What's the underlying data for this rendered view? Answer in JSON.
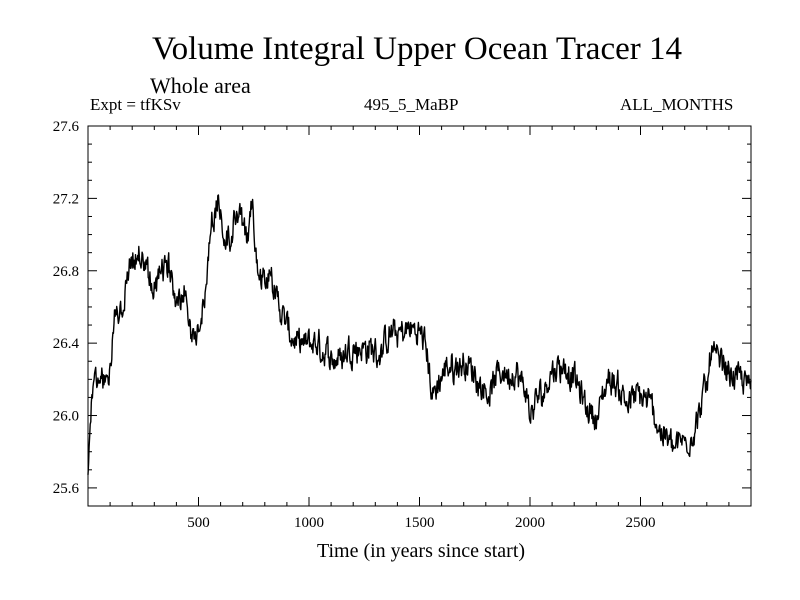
{
  "chart_data": {
    "type": "line",
    "title": "Volume Integral Upper Ocean Tracer 14",
    "subtitle": "Whole area",
    "experiment": "Expt = tfKSv",
    "period": "495_5_MaBP",
    "months": "ALL_MONTHS",
    "xlabel": "Time (in years since start)",
    "ylabel": "",
    "xlim": [
      0,
      3000
    ],
    "ylim": [
      25.5,
      27.6
    ],
    "xticks": [
      500,
      1000,
      1500,
      2000,
      2500
    ],
    "xtick_labels": [
      "500",
      "1000",
      "1500",
      "2000",
      "2500"
    ],
    "yticks": [
      25.6,
      26.0,
      26.4,
      26.8,
      27.2,
      27.6
    ],
    "ytick_labels": [
      "25.6",
      "26.0",
      "26.4",
      "26.8",
      "27.2",
      "27.6"
    ],
    "line_color": "#000000",
    "noise_amplitude": 0.11,
    "series": [
      {
        "name": "Tracer 14",
        "x": [
          0,
          20,
          60,
          100,
          120,
          150,
          180,
          200,
          230,
          260,
          300,
          330,
          360,
          400,
          440,
          470,
          500,
          530,
          560,
          590,
          620,
          650,
          680,
          700,
          720,
          740,
          760,
          790,
          820,
          850,
          880,
          910,
          940,
          980,
          1020,
          1080,
          1150,
          1200,
          1250,
          1300,
          1350,
          1400,
          1450,
          1500,
          1530,
          1560,
          1580,
          1620,
          1700,
          1760,
          1820,
          1880,
          1940,
          1980,
          2000,
          2050,
          2100,
          2150,
          2200,
          2250,
          2300,
          2330,
          2360,
          2400,
          2450,
          2500,
          2550,
          2580,
          2600,
          2650,
          2700,
          2750,
          2800,
          2820,
          2850,
          2900,
          2950,
          3000
        ],
        "values": [
          25.7,
          26.15,
          26.2,
          26.25,
          26.55,
          26.5,
          26.8,
          26.85,
          26.9,
          26.8,
          26.7,
          26.75,
          26.85,
          26.65,
          26.7,
          26.4,
          26.5,
          26.65,
          27.1,
          27.2,
          26.95,
          27.05,
          27.15,
          27.05,
          26.95,
          27.2,
          26.85,
          26.75,
          26.8,
          26.65,
          26.55,
          26.45,
          26.4,
          26.35,
          26.4,
          26.3,
          26.35,
          26.4,
          26.38,
          26.35,
          26.4,
          26.45,
          26.48,
          26.45,
          26.42,
          26.1,
          26.15,
          26.25,
          26.3,
          26.2,
          26.15,
          26.25,
          26.2,
          26.1,
          26.0,
          26.1,
          26.25,
          26.3,
          26.2,
          26.05,
          26.0,
          26.1,
          26.2,
          26.15,
          26.1,
          26.1,
          26.05,
          25.95,
          25.9,
          25.85,
          25.85,
          25.95,
          26.15,
          26.4,
          26.3,
          26.25,
          26.2,
          26.15
        ]
      }
    ]
  }
}
